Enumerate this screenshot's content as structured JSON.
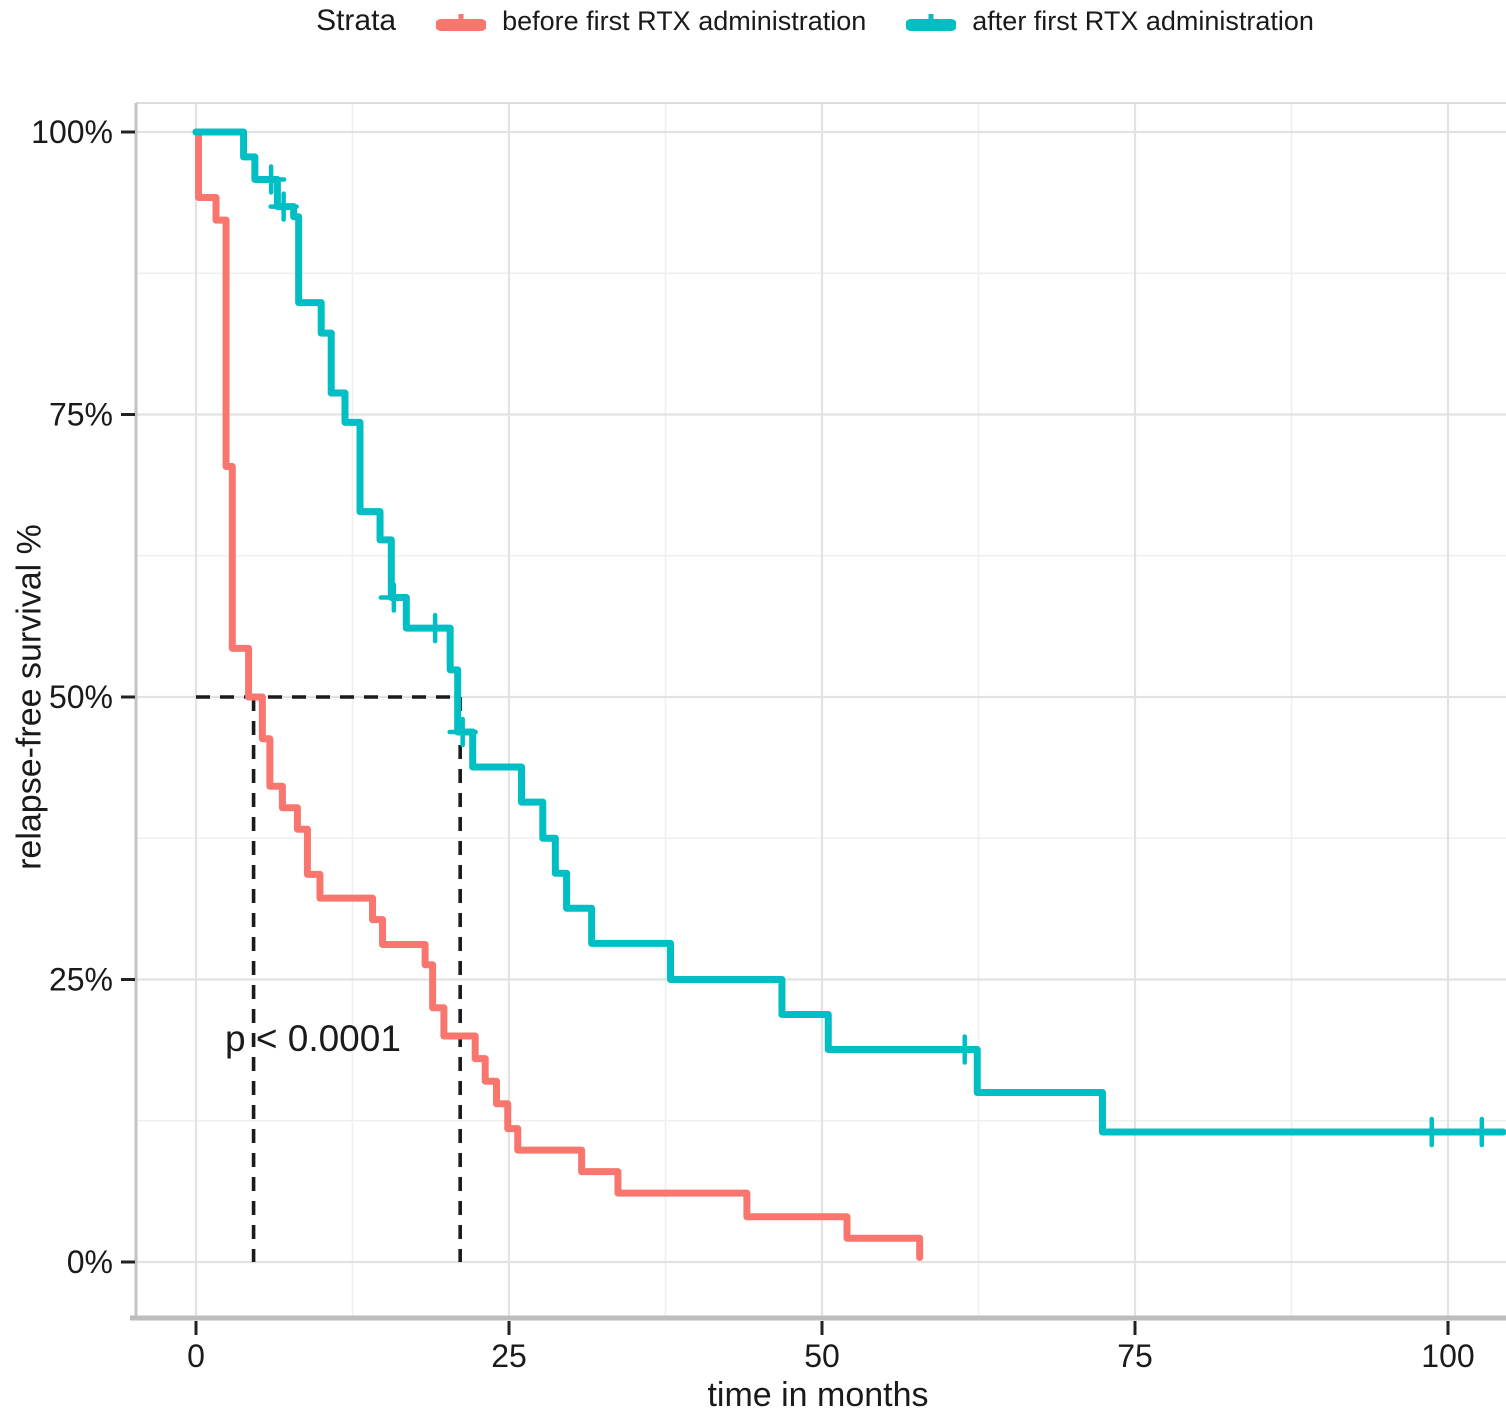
{
  "legend": {
    "title": "Strata",
    "items": [
      {
        "label": "before first RTX administration",
        "color": "#F8766D"
      },
      {
        "label": "after first RTX administration",
        "color": "#00BFC4"
      }
    ]
  },
  "axes": {
    "x": {
      "title": "time in months",
      "tick_labels": [
        "0",
        "25",
        "50",
        "75",
        "100"
      ],
      "tick_values": [
        0,
        25,
        50,
        75,
        100
      ],
      "minor_values": [
        12.5,
        37.5,
        62.5,
        87.5
      ]
    },
    "y": {
      "title": "relapse-free survival %",
      "tick_labels": [
        "0%",
        "25%",
        "50%",
        "75%",
        "100%"
      ],
      "tick_values": [
        0,
        25,
        50,
        75,
        100
      ],
      "minor_values": [
        12.5,
        37.5,
        62.5,
        87.5
      ]
    }
  },
  "chart_data": {
    "type": "line",
    "subtype": "kaplan_meier_step",
    "title": "",
    "xlabel": "time in months",
    "ylabel": "relapse-free survival %",
    "xlim": [
      0,
      100
    ],
    "ylim": [
      0,
      100
    ],
    "grid": "on",
    "legend_position": "top",
    "p_value_label": "p < 0.0001",
    "median_annotation": {
      "survival_level": 50,
      "times": [
        4.6,
        21.1
      ]
    },
    "series": [
      {
        "name": "before first RTX administration",
        "color": "#F8766D",
        "end_time": 57.8,
        "points": [
          [
            0,
            100
          ],
          [
            0.2,
            94.2
          ],
          [
            1.6,
            92.2
          ],
          [
            2.4,
            70.4
          ],
          [
            2.9,
            54.3
          ],
          [
            4.2,
            50.0
          ],
          [
            5.3,
            46.3
          ],
          [
            5.9,
            42.1
          ],
          [
            6.9,
            40.2
          ],
          [
            8.1,
            38.3
          ],
          [
            8.9,
            34.3
          ],
          [
            9.9,
            32.2
          ],
          [
            14.1,
            30.3
          ],
          [
            14.9,
            28.1
          ],
          [
            18.3,
            26.3
          ],
          [
            18.9,
            22.5
          ],
          [
            19.8,
            20.0
          ],
          [
            22.3,
            18.0
          ],
          [
            23.1,
            16.0
          ],
          [
            24.0,
            14.0
          ],
          [
            24.9,
            11.8
          ],
          [
            25.7,
            9.9
          ],
          [
            30.8,
            8.0
          ],
          [
            33.7,
            6.1
          ],
          [
            44.0,
            4.0
          ],
          [
            52.0,
            2.1
          ],
          [
            57.8,
            0.4
          ]
        ],
        "censor_marks": []
      },
      {
        "name": "after first RTX administration",
        "color": "#00BFC4",
        "end_time": 104.4,
        "points": [
          [
            0,
            100
          ],
          [
            3.8,
            97.8
          ],
          [
            4.7,
            95.8
          ],
          [
            6.5,
            93.4
          ],
          [
            7.8,
            92.5
          ],
          [
            8.2,
            84.9
          ],
          [
            10.0,
            82.2
          ],
          [
            10.8,
            76.9
          ],
          [
            11.9,
            74.3
          ],
          [
            13.1,
            66.4
          ],
          [
            14.7,
            63.9
          ],
          [
            15.6,
            58.8
          ],
          [
            16.8,
            56.1
          ],
          [
            20.3,
            52.4
          ],
          [
            20.9,
            46.9
          ],
          [
            22.1,
            43.8
          ],
          [
            26.0,
            40.7
          ],
          [
            27.7,
            37.5
          ],
          [
            28.7,
            34.4
          ],
          [
            29.6,
            31.3
          ],
          [
            31.6,
            28.2
          ],
          [
            37.9,
            25.0
          ],
          [
            46.8,
            21.9
          ],
          [
            50.5,
            18.8
          ],
          [
            62.4,
            15.0
          ],
          [
            72.4,
            11.5
          ]
        ],
        "censor_marks": [
          [
            6.0,
            95.8
          ],
          [
            7.0,
            93.4
          ],
          [
            15.8,
            58.8
          ],
          [
            19.1,
            56.1
          ],
          [
            21.3,
            46.9
          ],
          [
            61.4,
            18.8
          ],
          [
            98.7,
            11.5
          ],
          [
            102.7,
            11.5
          ]
        ]
      }
    ]
  }
}
